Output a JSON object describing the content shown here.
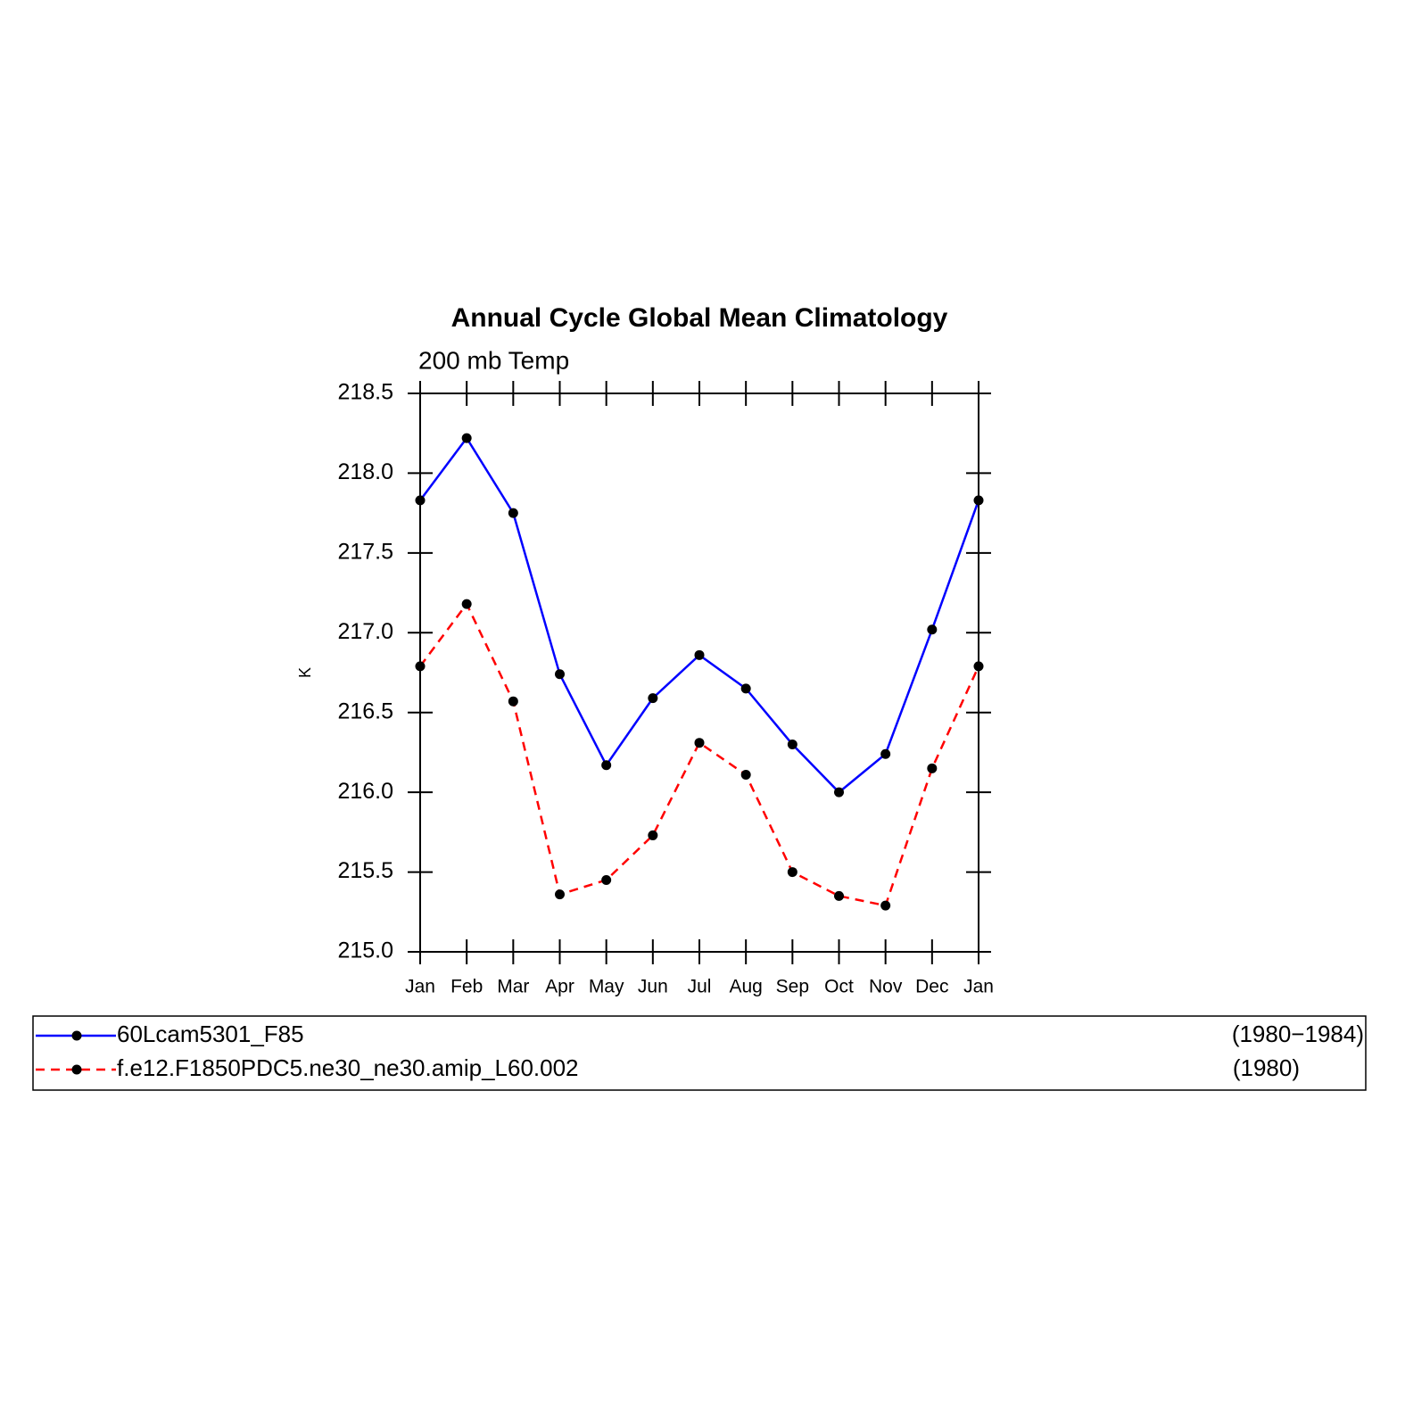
{
  "chart_data": {
    "type": "line",
    "title": "Annual Cycle Global Mean Climatology",
    "subtitle": "200 mb Temp",
    "y_label": "K",
    "categories": [
      "Jan",
      "Feb",
      "Mar",
      "Apr",
      "May",
      "Jun",
      "Jul",
      "Aug",
      "Sep",
      "Oct",
      "Nov",
      "Dec",
      "Jan"
    ],
    "series": [
      {
        "name": "60Lcam5301_F85",
        "period": "(1980−1984)",
        "color": "#0000ff",
        "dash": "solid",
        "values": [
          217.83,
          218.22,
          217.75,
          216.74,
          216.17,
          216.59,
          216.86,
          216.65,
          216.3,
          216.0,
          216.24,
          217.02,
          217.83
        ]
      },
      {
        "name": "f.e12.F1850PDC5.ne30_ne30.amip_L60.002",
        "period": "(1980)",
        "color": "#ff0000",
        "dash": "dashed",
        "values": [
          216.79,
          217.18,
          216.57,
          215.36,
          215.45,
          215.73,
          216.31,
          216.11,
          215.5,
          215.35,
          215.29,
          216.15,
          216.79
        ]
      }
    ],
    "marker_color": "#000000",
    "ylim": [
      215.0,
      218.5
    ],
    "yticks": [
      {
        "value": 215,
        "label": "215.0"
      },
      215.5,
      {
        "value": 216,
        "label": "216.0"
      },
      216.5,
      {
        "value": 217,
        "label": "217.0"
      },
      217.5,
      {
        "value": 218,
        "label": "218.0"
      },
      218.5
    ]
  }
}
